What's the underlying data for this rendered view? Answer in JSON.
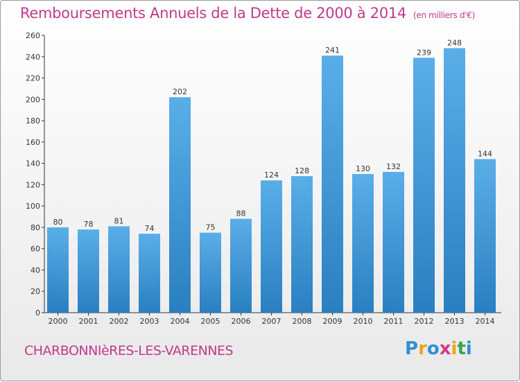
{
  "header": {
    "title": "Remboursements Annuels de la Dette de 2000 à 2014",
    "unit": "(en milliers d'€)"
  },
  "footer": {
    "commune": "CHARBONNIèRES-LES-VARENNES",
    "logo_letters": [
      "P",
      "r",
      "o",
      "x",
      "i",
      "t",
      "i"
    ],
    "logo_colors": [
      "#2f8fd6",
      "#f0a020",
      "#2f8fd6",
      "#d43a8c",
      "#f0a020",
      "#3aa648",
      "#2f8fd6"
    ]
  },
  "chart_data": {
    "type": "bar",
    "categories": [
      "2000",
      "2001",
      "2002",
      "2003",
      "2004",
      "2005",
      "2006",
      "2007",
      "2008",
      "2009",
      "2010",
      "2011",
      "2012",
      "2013",
      "2014"
    ],
    "values": [
      80,
      78,
      81,
      74,
      202,
      75,
      88,
      124,
      128,
      241,
      130,
      132,
      239,
      248,
      144
    ],
    "ylim": [
      0,
      260
    ],
    "yticks": [
      0,
      20,
      40,
      60,
      80,
      100,
      120,
      140,
      160,
      180,
      200,
      220,
      240,
      260
    ],
    "grid": false,
    "bar_color_top": "#5aaee8",
    "bar_color_bottom": "#2a7fc0"
  }
}
